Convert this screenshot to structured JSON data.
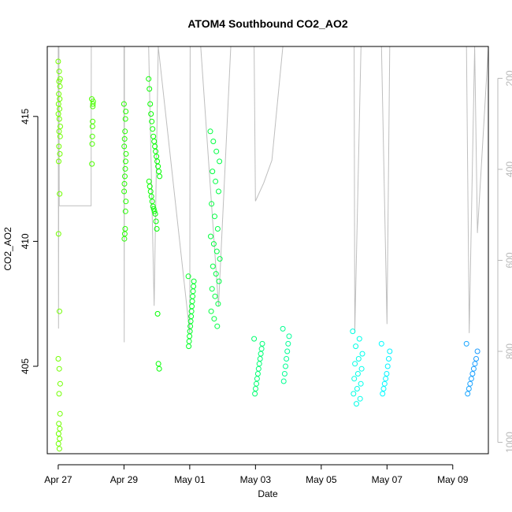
{
  "chart_data": {
    "type": "scatter",
    "title": "ATOM4 Southbound CO2_AO2",
    "xlabel": "Date",
    "ylabel": "CO2_AO2",
    "x_ticks": [
      "Apr 27",
      "Apr 29",
      "May 01",
      "May 03",
      "May 05",
      "May 07",
      "May 09"
    ],
    "x_range": [
      "2016-04-26T16:00",
      "2016-05-10T02:00"
    ],
    "ylim": [
      401.5,
      417.8
    ],
    "y_ticks": [
      405,
      410,
      415
    ],
    "y2_ticks": [
      200,
      400,
      600,
      800,
      1000
    ],
    "y2lim": [
      1025,
      130
    ],
    "y2_axis_color": "#b8b8b8",
    "point_color_scale": [
      "#7fff00",
      "#00ff00",
      "#00ff7f",
      "#00ffff",
      "#1e90ff"
    ],
    "line_color": "#bebebe",
    "series": [
      {
        "kind": "points",
        "clusters": [
          {
            "t_start": "2016-04-27T00:00",
            "t_end": "2016-04-27T01:30",
            "y_values": [
              417.2,
              416.8,
              416.5,
              416.4,
              416.2,
              415.9,
              415.7,
              415.5,
              415.3,
              415.1,
              414.9,
              414.6,
              414.4,
              414.2,
              413.8,
              413.5,
              413.2,
              411.9,
              410.3,
              407.2,
              405.3,
              404.9,
              404.3,
              403.9,
              403.1,
              402.7,
              402.5,
              402.3,
              402.1,
              401.9,
              401.7
            ]
          },
          {
            "t_start": "2016-04-28T00:30",
            "t_end": "2016-04-28T01:30",
            "y_values": [
              415.7,
              415.6,
              415.5,
              415.4,
              414.8,
              414.6,
              414.2,
              413.9,
              413.1
            ]
          },
          {
            "t_start": "2016-04-29T00:00",
            "t_end": "2016-04-29T01:30",
            "y_values": [
              415.5,
              415.2,
              414.9,
              414.4,
              414.1,
              413.8,
              413.5,
              413.2,
              412.9,
              412.6,
              412.3,
              412.0,
              411.6,
              411.2,
              410.5,
              410.3,
              410.1
            ]
          },
          {
            "t_start": "2016-04-29T18:00",
            "t_end": "2016-04-30T02:00",
            "y_values": [
              416.5,
              416.1,
              415.5,
              415.1,
              414.8,
              414.5,
              414.2,
              414.0,
              413.8,
              413.6,
              413.4,
              413.2,
              413.0,
              412.8,
              412.6,
              412.4,
              412.2,
              412.0,
              411.8,
              411.6,
              411.4,
              411.3,
              411.2,
              411.1,
              410.8,
              410.5,
              407.1,
              405.1,
              404.9
            ]
          },
          {
            "t_start": "2016-04-30T23:00",
            "t_end": "2016-05-01T03:00",
            "y_values": [
              408.6,
              408.4,
              408.2,
              408.0,
              407.8,
              407.6,
              407.4,
              407.2,
              407.0,
              406.8,
              406.6,
              406.4,
              406.2,
              406.0,
              405.8
            ]
          },
          {
            "t_start": "2016-05-01T15:00",
            "t_end": "2016-05-01T22:00",
            "y_values": [
              414.4,
              414.0,
              413.6,
              413.2,
              412.8,
              412.4,
              412.0,
              411.5,
              411.0,
              410.5,
              410.2,
              409.9,
              409.6,
              409.3,
              409.0,
              408.7,
              408.4,
              408.1,
              407.8,
              407.5,
              407.2,
              406.9,
              406.6
            ]
          },
          {
            "t_start": "2016-05-02T23:00",
            "t_end": "2016-05-03T05:00",
            "y_values": [
              406.1,
              405.9,
              405.7,
              405.5,
              405.3,
              405.1,
              404.9,
              404.7,
              404.5,
              404.3,
              404.1,
              403.9
            ]
          },
          {
            "t_start": "2016-05-03T20:00",
            "t_end": "2016-05-04T00:30",
            "y_values": [
              406.5,
              406.2,
              405.9,
              405.6,
              405.3,
              405.0,
              404.7,
              404.4
            ]
          },
          {
            "t_start": "2016-05-05T23:00",
            "t_end": "2016-05-06T06:00",
            "y_values": [
              406.4,
              406.1,
              405.8,
              405.5,
              405.3,
              405.1,
              404.9,
              404.7,
              404.5,
              404.3,
              404.1,
              403.9,
              403.7,
              403.5
            ]
          },
          {
            "t_start": "2016-05-06T20:00",
            "t_end": "2016-05-07T02:00",
            "y_values": [
              405.9,
              405.6,
              405.3,
              405.0,
              404.7,
              404.5,
              404.3,
              404.1,
              403.9
            ]
          },
          {
            "t_start": "2016-05-09T10:00",
            "t_end": "2016-05-09T18:00",
            "y_values": [
              405.9,
              405.6,
              405.3,
              405.1,
              404.9,
              404.7,
              404.5,
              404.3,
              404.1,
              403.9
            ]
          }
        ]
      },
      {
        "kind": "line",
        "axis": "right",
        "points": [
          [
            "2016-04-26T16:00",
            130
          ],
          [
            "2016-04-27T00:00",
            130
          ],
          [
            "2016-04-27T00:15",
            750
          ],
          [
            "2016-04-27T00:30",
            130
          ],
          [
            "2016-04-27T00:45",
            480
          ],
          [
            "2016-04-28T00:00",
            480
          ],
          [
            "2016-04-28T00:10",
            130
          ],
          [
            "2016-04-29T00:00",
            130
          ],
          [
            "2016-04-29T00:10",
            780
          ],
          [
            "2016-04-29T00:20",
            130
          ],
          [
            "2016-04-29T18:00",
            130
          ],
          [
            "2016-04-29T22:00",
            700
          ],
          [
            "2016-04-30T01:00",
            130
          ],
          [
            "2016-05-01T00:00",
            760
          ],
          [
            "2016-05-01T00:20",
            130
          ],
          [
            "2016-05-01T08:00",
            130
          ],
          [
            "2016-05-01T21:00",
            700
          ],
          [
            "2016-05-02T06:00",
            130
          ],
          [
            "2016-05-02T23:00",
            130
          ],
          [
            "2016-05-03T00:00",
            470
          ],
          [
            "2016-05-03T06:00",
            430
          ],
          [
            "2016-05-03T12:00",
            380
          ],
          [
            "2016-05-03T20:00",
            130
          ],
          [
            "2016-05-04T00:00",
            130
          ],
          [
            "2016-05-06T00:00",
            130
          ],
          [
            "2016-05-06T00:30",
            760
          ],
          [
            "2016-05-06T05:00",
            130
          ],
          [
            "2016-05-06T20:00",
            130
          ],
          [
            "2016-05-07T00:00",
            740
          ],
          [
            "2016-05-07T02:00",
            130
          ],
          [
            "2016-05-09T10:00",
            130
          ],
          [
            "2016-05-09T12:00",
            760
          ],
          [
            "2016-05-09T16:00",
            130
          ],
          [
            "2016-05-09T18:00",
            540
          ],
          [
            "2016-05-10T02:00",
            130
          ]
        ]
      }
    ],
    "grid": false,
    "legend": "none"
  }
}
